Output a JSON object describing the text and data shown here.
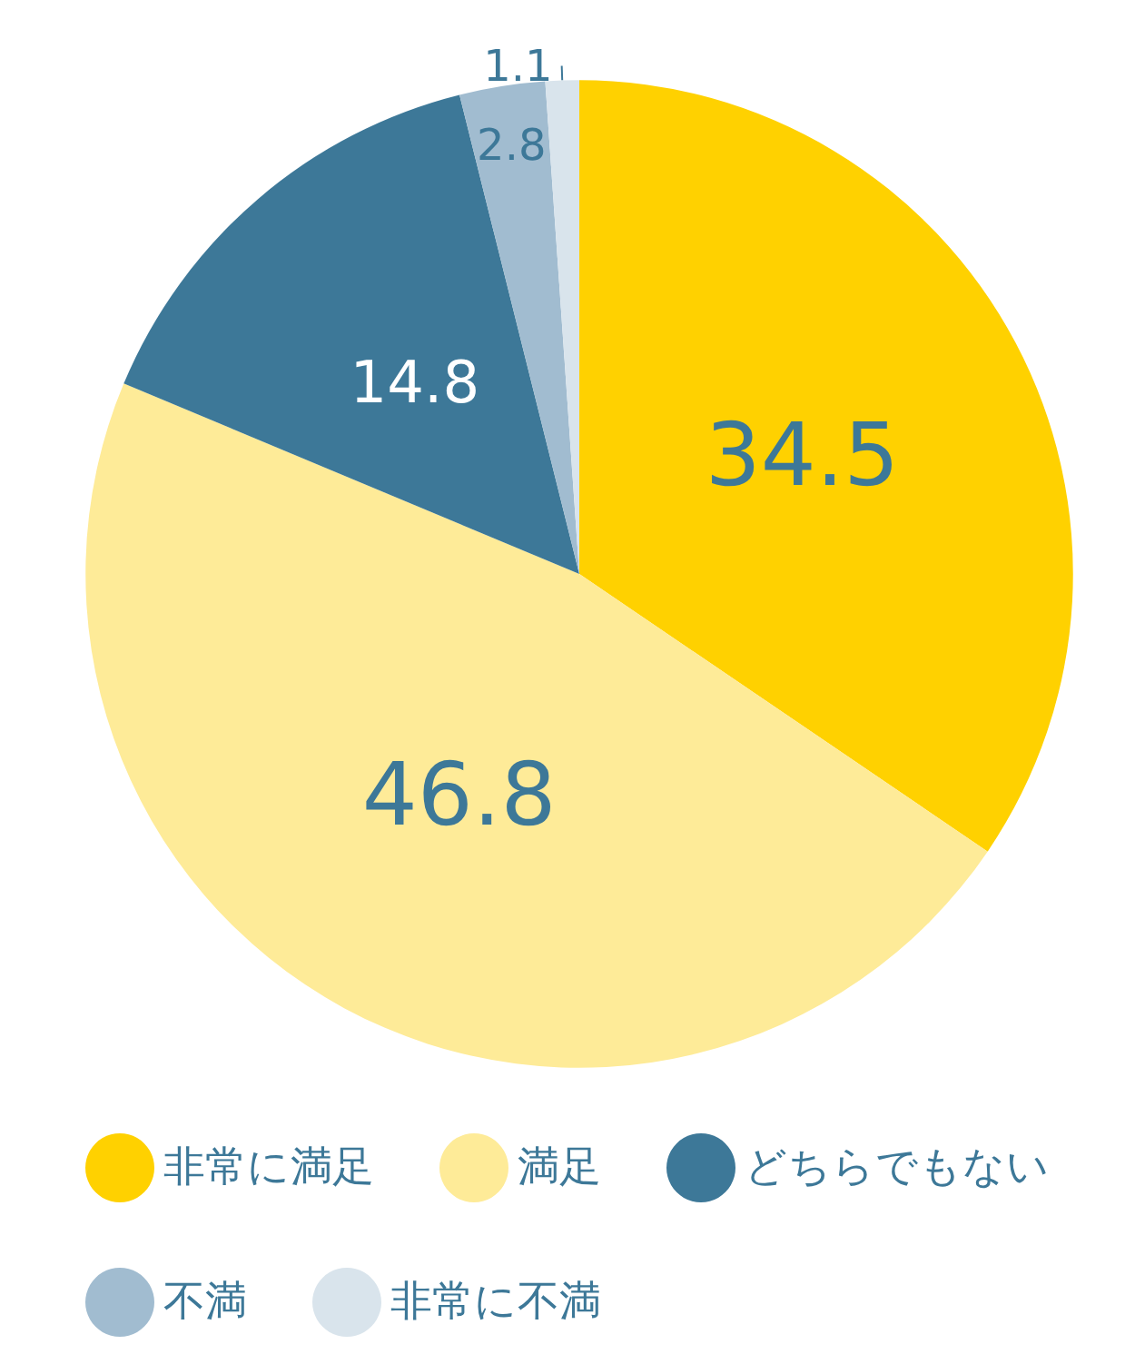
{
  "chart_data": {
    "type": "pie",
    "categories": [
      "非常に満足",
      "満足",
      "どちらでもない",
      "不満",
      "非常に不満"
    ],
    "values": [
      34.5,
      46.8,
      14.8,
      2.8,
      1.1
    ],
    "colors": [
      "#ffd100",
      "#feeb98",
      "#3d7898",
      "#a1bcd0",
      "#d9e4ec"
    ],
    "data_labels": true,
    "legend": "bottom"
  }
}
